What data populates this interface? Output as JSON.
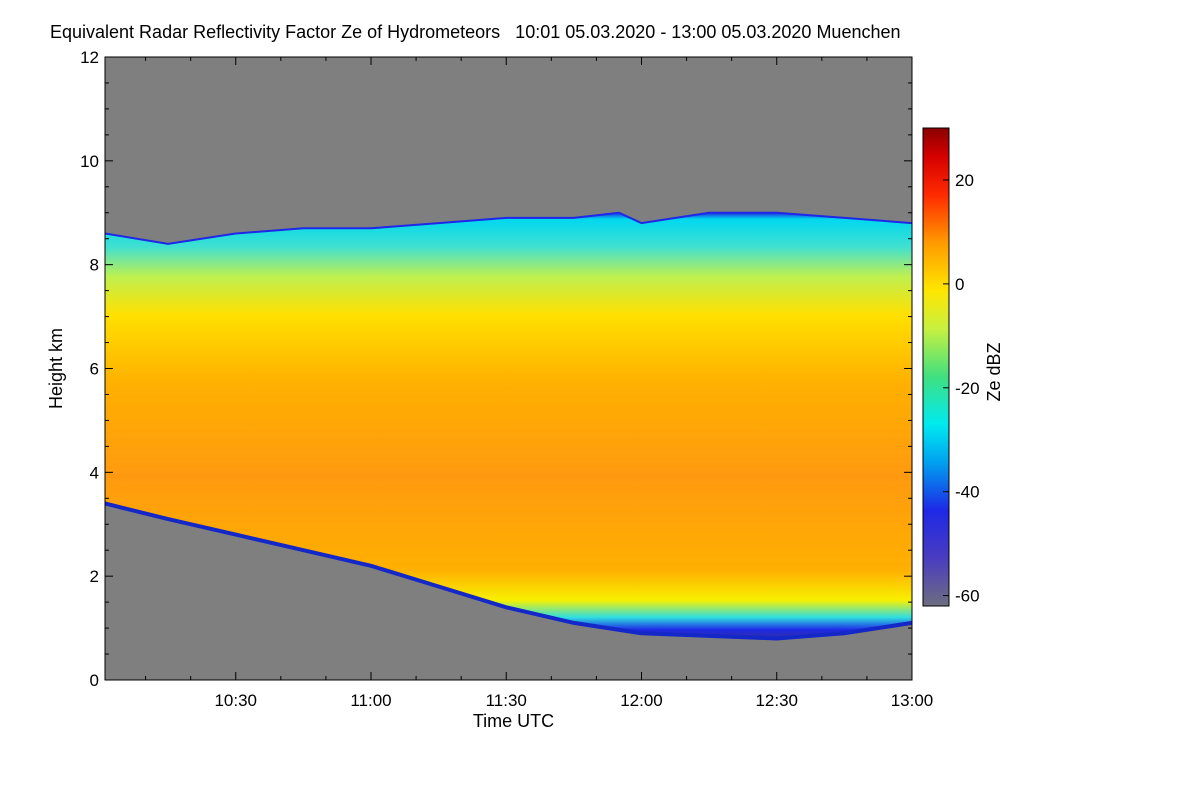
{
  "chart_data": {
    "type": "heatmap",
    "title": "Equivalent Radar Reflectivity Factor Ze of Hydrometeors   10:01 05.03.2020 - 13:00 05.03.2020 Muenchen",
    "xlabel": "Time UTC",
    "ylabel": "Height km",
    "colorbar_label": "Ze dBZ",
    "x_ticks": [
      "10:30",
      "11:00",
      "11:30",
      "12:00",
      "12:30",
      "13:00"
    ],
    "x_tick_minutes": [
      630,
      660,
      690,
      720,
      750,
      780
    ],
    "xlim_minutes": [
      601,
      780
    ],
    "y_ticks": [
      0,
      2,
      4,
      6,
      8,
      10,
      12
    ],
    "ylim": [
      0,
      12
    ],
    "colorbar_ticks": [
      20,
      0,
      -20,
      -40,
      -60
    ],
    "colorbar_range": [
      -62,
      30
    ],
    "no_data_color": "#7f7f7f",
    "cloud_top_km": [
      [
        601,
        8.6
      ],
      [
        615,
        8.4
      ],
      [
        630,
        8.6
      ],
      [
        645,
        8.7
      ],
      [
        660,
        8.7
      ],
      [
        675,
        8.8
      ],
      [
        690,
        8.9
      ],
      [
        705,
        8.9
      ],
      [
        715,
        9.0
      ],
      [
        720,
        8.8
      ],
      [
        735,
        9.0
      ],
      [
        750,
        9.0
      ],
      [
        765,
        8.9
      ],
      [
        780,
        8.8
      ]
    ],
    "cloud_base_km": [
      [
        601,
        3.4
      ],
      [
        615,
        3.1
      ],
      [
        630,
        2.8
      ],
      [
        645,
        2.5
      ],
      [
        660,
        2.2
      ],
      [
        675,
        1.8
      ],
      [
        690,
        1.4
      ],
      [
        705,
        1.1
      ],
      [
        720,
        0.9
      ],
      [
        735,
        0.85
      ],
      [
        750,
        0.8
      ],
      [
        765,
        0.9
      ],
      [
        780,
        1.1
      ]
    ]
  }
}
